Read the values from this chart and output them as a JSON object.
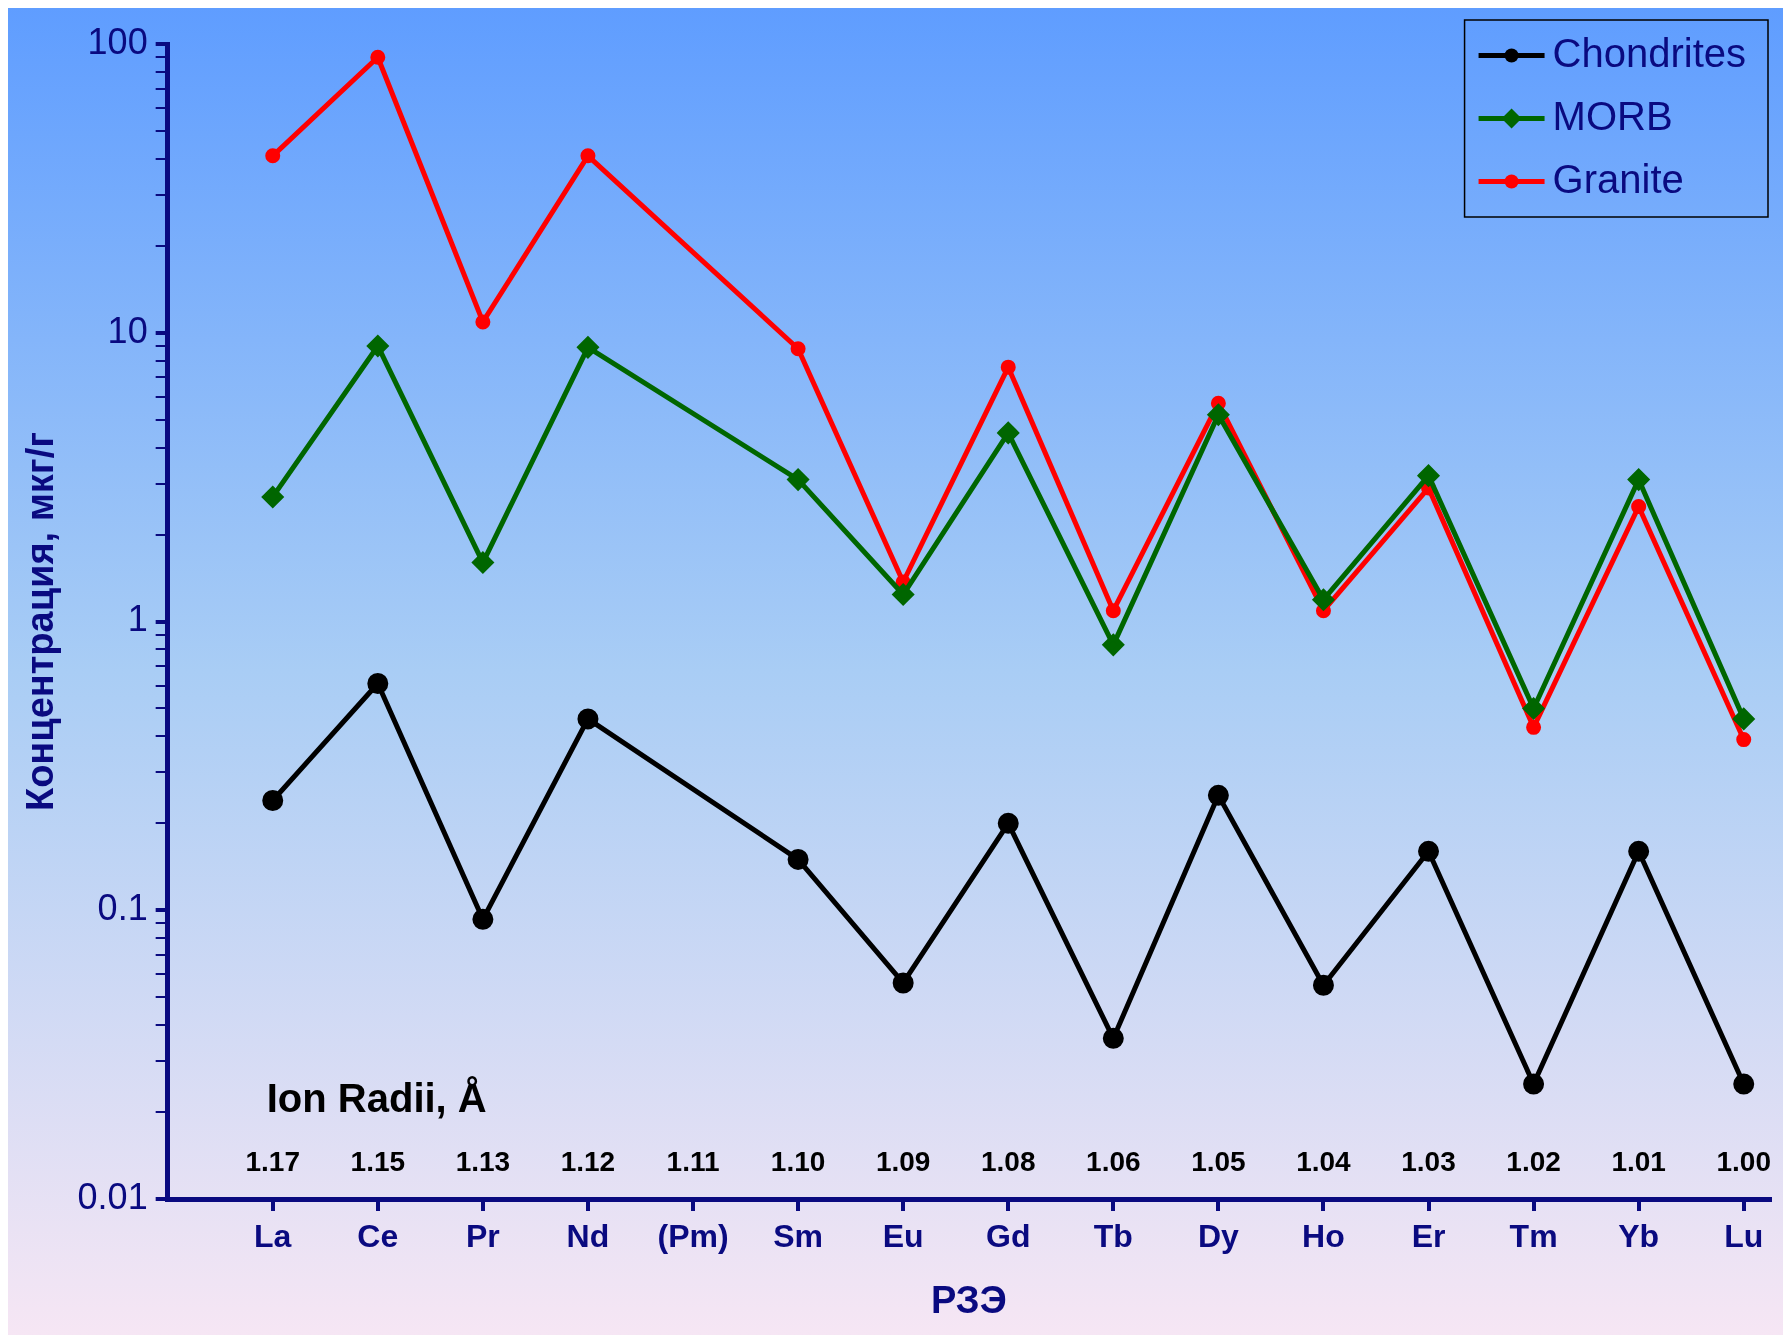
{
  "chart_data": {
    "type": "line",
    "xlabel": "РЗЭ",
    "ylabel": "Концентрация, мкг/г",
    "categories": [
      "La",
      "Ce",
      "Pr",
      "Nd",
      "(Pm)",
      "Sm",
      "Eu",
      "Gd",
      "Tb",
      "Dy",
      "Ho",
      "Er",
      "Tm",
      "Yb",
      "Lu"
    ],
    "annotations": [
      "Ion Radii, Å",
      "1.17",
      "1.15",
      "1.13",
      "1.12",
      "1.11",
      "1.10",
      "1.09",
      "1.08",
      "1.06",
      "1.05",
      "1.04",
      "1.03",
      "1.02",
      "1.01",
      "1.00"
    ],
    "series": [
      {
        "name": "Chondrites",
        "color": "#000000",
        "marker": "circle",
        "values": [
          0.24,
          0.61,
          0.093,
          0.46,
          null,
          0.15,
          0.056,
          0.2,
          0.036,
          0.25,
          0.055,
          0.16,
          0.025,
          0.16,
          0.025
        ]
      },
      {
        "name": "MORB",
        "color": "#006600",
        "marker": "diamond",
        "values": [
          2.7,
          9,
          1.6,
          8.9,
          null,
          3.1,
          1.24,
          4.5,
          0.83,
          5.2,
          1.19,
          3.2,
          0.5,
          3.1,
          0.46
        ]
      },
      {
        "name": "Granite",
        "color": "#ff0000",
        "marker": "circle",
        "values": [
          41,
          90,
          10.9,
          41,
          null,
          8.8,
          1.37,
          7.6,
          1.09,
          5.7,
          1.09,
          2.9,
          0.43,
          2.5,
          0.39
        ]
      }
    ],
    "log": true,
    "ylim": [
      0.01,
      100
    ],
    "yticks": [
      {
        "value": 0.01,
        "label": "0.01"
      },
      {
        "value": 0.02,
        "label": null
      },
      {
        "value": 0.03,
        "label": null
      },
      {
        "value": 0.04,
        "label": null
      },
      {
        "value": 0.05,
        "label": null
      },
      {
        "value": 0.06,
        "label": null
      },
      {
        "value": 0.07,
        "label": null
      },
      {
        "value": 0.08,
        "label": null
      },
      {
        "value": 0.09,
        "label": null
      },
      {
        "value": 0.1,
        "label": "0.1"
      },
      {
        "value": 0.2,
        "label": null
      },
      {
        "value": 0.3,
        "label": null
      },
      {
        "value": 0.4,
        "label": null
      },
      {
        "value": 0.5,
        "label": null
      },
      {
        "value": 0.6,
        "label": null
      },
      {
        "value": 0.7,
        "label": null
      },
      {
        "value": 0.8,
        "label": null
      },
      {
        "value": 0.9,
        "label": null
      },
      {
        "value": 1,
        "label": "1"
      },
      {
        "value": 2,
        "label": null
      },
      {
        "value": 3,
        "label": null
      },
      {
        "value": 4,
        "label": null
      },
      {
        "value": 5,
        "label": null
      },
      {
        "value": 6,
        "label": null
      },
      {
        "value": 7,
        "label": null
      },
      {
        "value": 8,
        "label": null
      },
      {
        "value": 9,
        "label": null
      },
      {
        "value": 10,
        "label": "10"
      },
      {
        "value": 20,
        "label": null
      },
      {
        "value": 30,
        "label": null
      },
      {
        "value": 40,
        "label": null
      },
      {
        "value": 50,
        "label": null
      },
      {
        "value": 60,
        "label": null
      },
      {
        "value": 70,
        "label": null
      },
      {
        "value": 80,
        "label": null
      },
      {
        "value": 90,
        "label": null
      },
      {
        "value": 100,
        "label": "100"
      }
    ],
    "grid": false,
    "legend": "top right"
  }
}
